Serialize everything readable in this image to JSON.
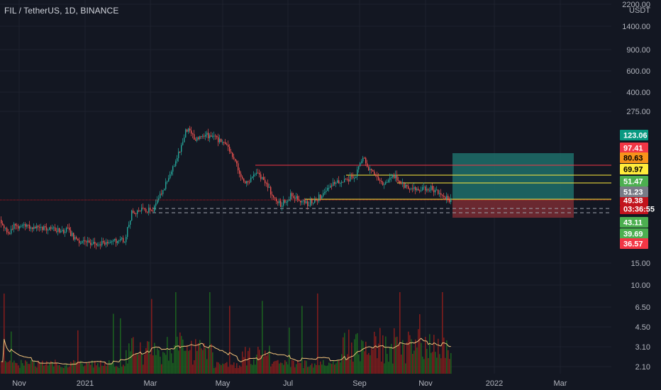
{
  "header": {
    "symbol_line": "FIL / TetherUS, 1D, BINANCE"
  },
  "price_axis": {
    "currency": "USDT",
    "labels": [
      "2200.00",
      "1400.00",
      "900.00",
      "600.00",
      "400.00",
      "275.00",
      "15.00",
      "10.00",
      "6.50",
      "4.50",
      "3.10",
      "2.10"
    ]
  },
  "time_axis": {
    "labels": [
      "Nov",
      "2021",
      "Mar",
      "May",
      "Jul",
      "Sep",
      "Nov",
      "2022",
      "Mar"
    ]
  },
  "badges": [
    {
      "text": "123.06",
      "bg": "#089981",
      "fg": "#ffffff"
    },
    {
      "text": "97.41",
      "bg": "#f23645",
      "fg": "#ffffff"
    },
    {
      "text": "80.63",
      "bg": "#f7931a",
      "fg": "#000000"
    },
    {
      "text": "69.97",
      "bg": "#ffeb3b",
      "fg": "#000000"
    },
    {
      "text": "51.47",
      "bg": "#4caf50",
      "fg": "#ffffff"
    },
    {
      "text": "51.23",
      "bg": "#787b86",
      "fg": "#ffffff"
    },
    {
      "text": "49.38",
      "bg": "#c2131c",
      "fg": "#ffffff"
    },
    {
      "text": "03:36:55",
      "bg": "#c2131c",
      "fg": "#ffffff"
    },
    {
      "text": "43.11",
      "bg": "#4caf50",
      "fg": "#ffffff"
    },
    {
      "text": "39.69",
      "bg": "#4caf50",
      "fg": "#ffffff"
    },
    {
      "text": "36.57",
      "bg": "#f23645",
      "fg": "#ffffff"
    }
  ],
  "colors": {
    "background": "#131722",
    "grid": "#1e222d",
    "up": "#26a69a",
    "down": "#ef5350",
    "vol_up": "#1b5e20",
    "vol_down": "#7f1d1d",
    "ma": "#f0c27b",
    "profit_zone": "#1f6f6a",
    "loss_zone": "#7a2b33"
  },
  "icons": [
    "chart-candles",
    "price-scale"
  ]
}
